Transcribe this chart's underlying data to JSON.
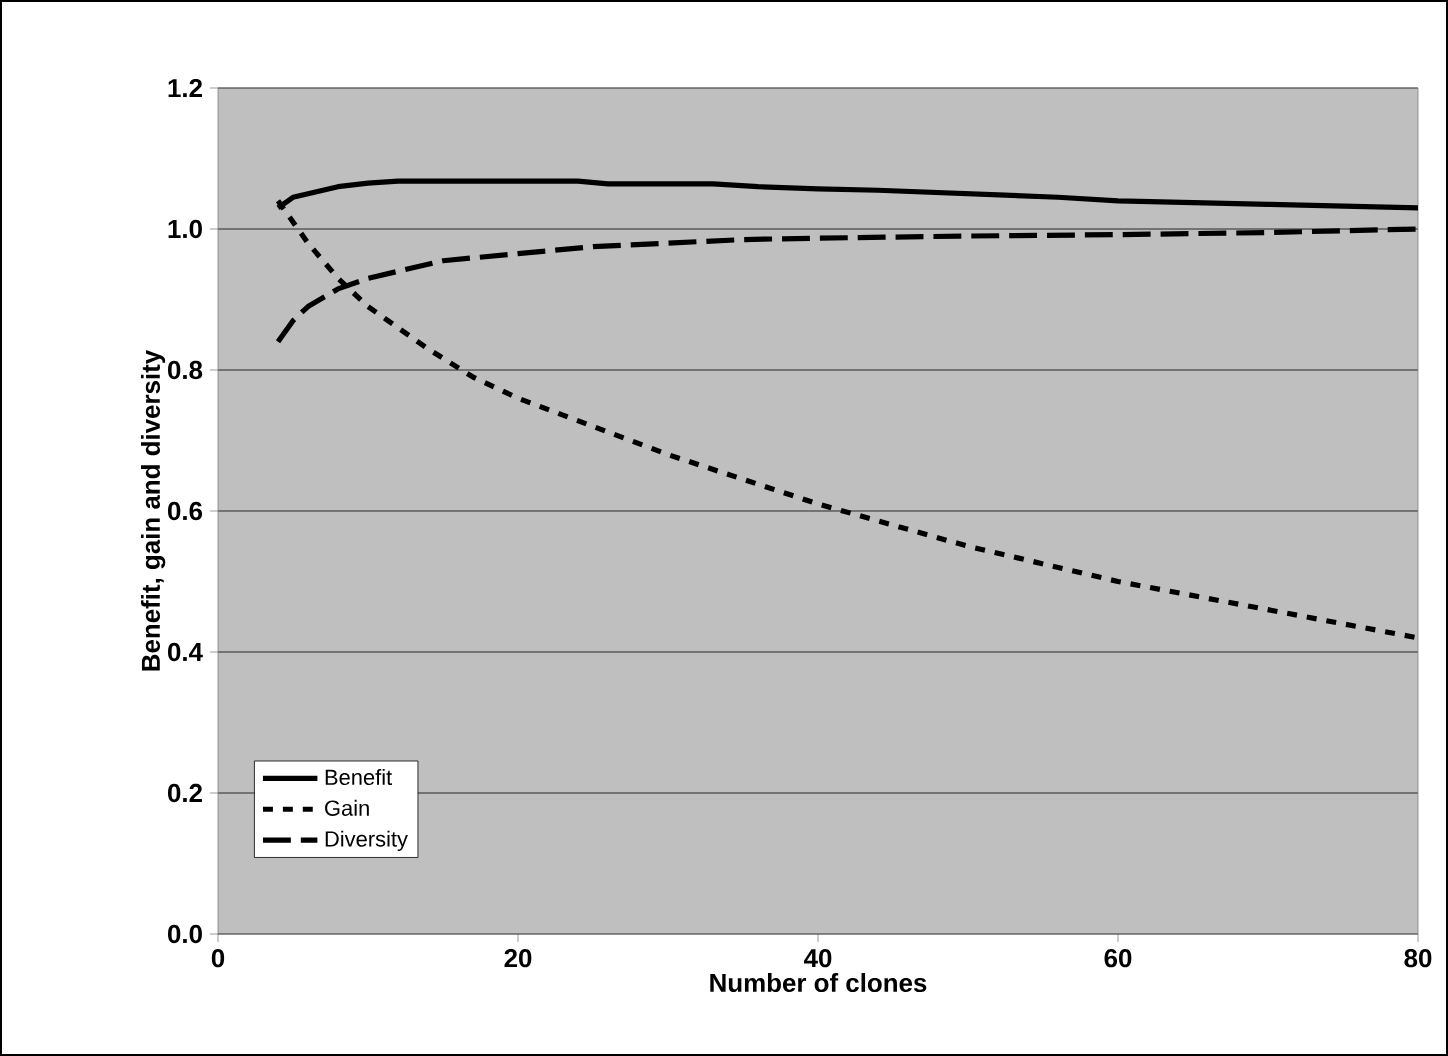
{
  "chart_data": {
    "type": "line",
    "xlabel": "Number of clones",
    "ylabel": "Benefit, gain and diversity",
    "xlim": [
      0,
      80
    ],
    "xticks": [
      0,
      20,
      40,
      60,
      80
    ],
    "ylim": [
      0,
      1.2
    ],
    "yticks": [
      {
        "value": 0,
        "label": "0.0"
      },
      0.2,
      0.4,
      0.6,
      0.8,
      {
        "value": 1,
        "label": "1.0"
      },
      1.2
    ],
    "grid": "y",
    "legend": "bottom left",
    "marker": "none",
    "series": [
      {
        "name": "Benefit",
        "color": "#000000",
        "line_style": "solid",
        "x": [
          4,
          5,
          6,
          8,
          10,
          12,
          16,
          20,
          24,
          26,
          30,
          33,
          36,
          40,
          44,
          50,
          56,
          60,
          70,
          80
        ],
        "values": [
          1.03,
          1.045,
          1.05,
          1.06,
          1.065,
          1.068,
          1.068,
          1.068,
          1.068,
          1.064,
          1.064,
          1.064,
          1.06,
          1.057,
          1.055,
          1.05,
          1.045,
          1.04,
          1.035,
          1.03
        ]
      },
      {
        "name": "Gain",
        "color": "#000000",
        "line_style": "dotted",
        "x": [
          4,
          5,
          6,
          8,
          10,
          12,
          14,
          17,
          20,
          25,
          30,
          35,
          40,
          45,
          50,
          55,
          60,
          65,
          70,
          75,
          80
        ],
        "values": [
          1.04,
          1.01,
          0.98,
          0.93,
          0.89,
          0.86,
          0.83,
          0.79,
          0.76,
          0.72,
          0.68,
          0.645,
          0.61,
          0.58,
          0.55,
          0.525,
          0.5,
          0.48,
          0.46,
          0.44,
          0.42
        ]
      },
      {
        "name": "Diversity",
        "color": "#000000",
        "line_style": "dashed",
        "x": [
          4,
          5,
          6,
          8,
          10,
          12,
          15,
          20,
          25,
          30,
          35,
          40,
          50,
          60,
          70,
          80
        ],
        "values": [
          0.84,
          0.87,
          0.89,
          0.915,
          0.93,
          0.94,
          0.955,
          0.965,
          0.975,
          0.98,
          0.985,
          0.987,
          0.99,
          0.992,
          0.995,
          1.0
        ]
      }
    ]
  }
}
